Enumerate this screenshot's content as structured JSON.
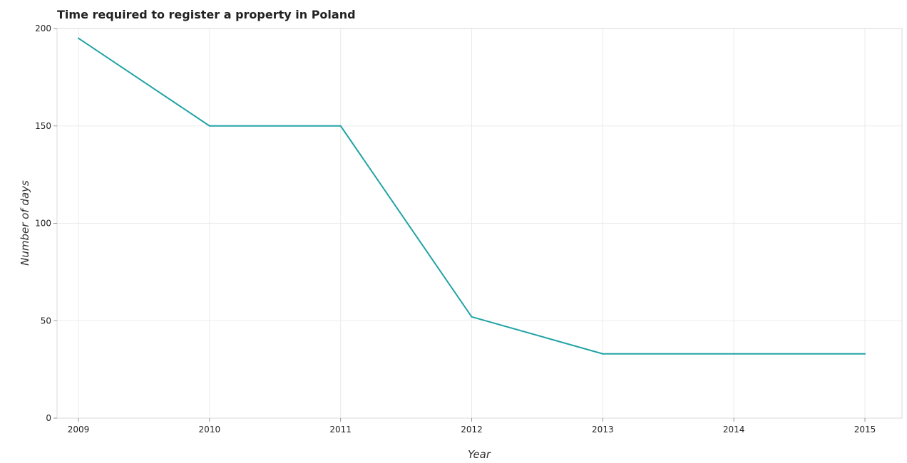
{
  "chart_data": {
    "type": "line",
    "title": "Time required to register a property in Poland",
    "xlabel": "Year",
    "ylabel": "Number of days",
    "categories": [
      "2009",
      "2010",
      "2011",
      "2012",
      "2013",
      "2014",
      "2015"
    ],
    "series": [
      {
        "values": [
          195,
          150,
          150,
          52,
          33,
          33,
          33
        ],
        "color": "#22a3a6"
      }
    ],
    "ylim": [
      0,
      200
    ],
    "yticks": [
      0,
      50,
      100,
      150,
      200
    ],
    "grid": true,
    "legend": "none"
  }
}
